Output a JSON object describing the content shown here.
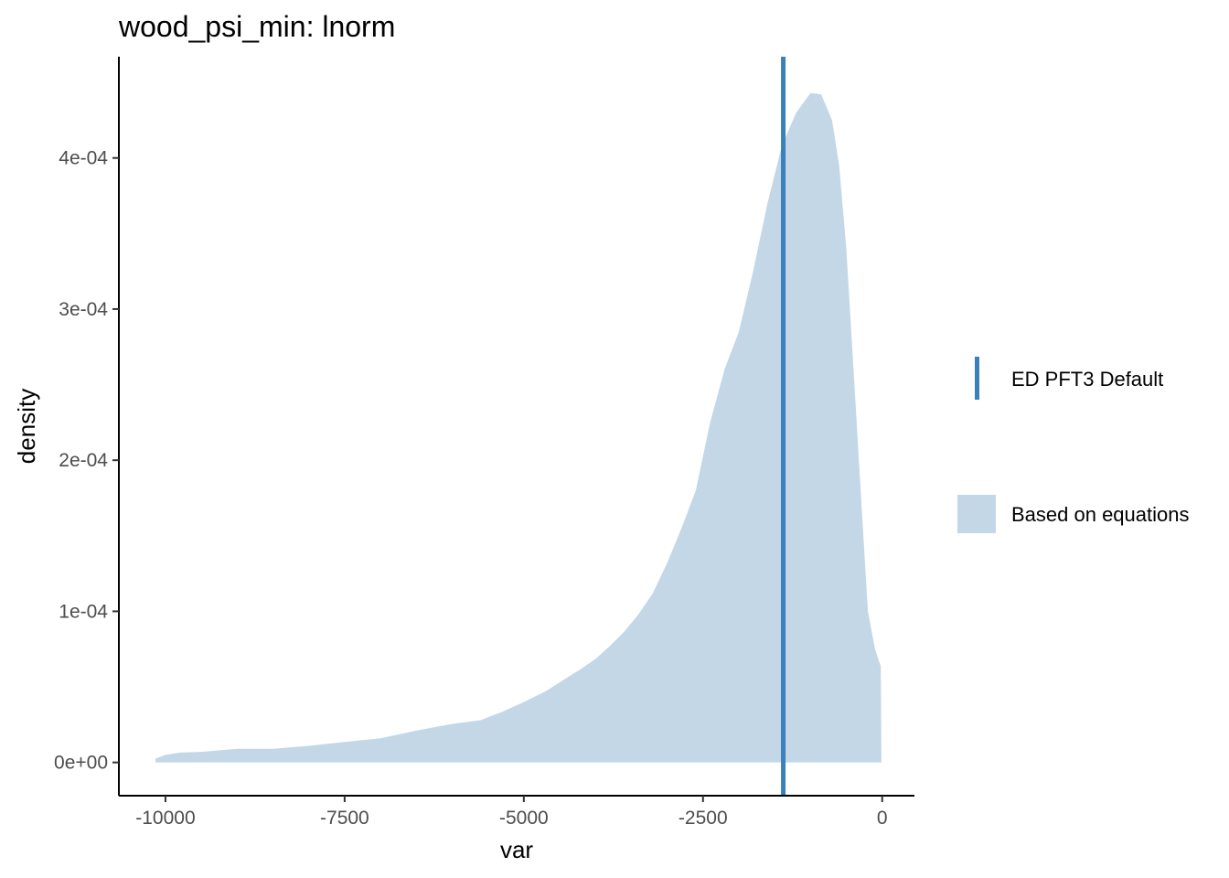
{
  "chart_data": {
    "type": "area",
    "title": "wood_psi_min: lnorm",
    "xlabel": "var",
    "ylabel": "density",
    "xlim": [
      -10650,
      450
    ],
    "ylim": [
      -2.2e-05,
      0.000467
    ],
    "x_ticks": [
      -10000,
      -7500,
      -5000,
      -2500,
      0
    ],
    "x_tick_labels": [
      "-10000",
      "-7500",
      "-5000",
      "-2500",
      "0"
    ],
    "y_ticks": [
      0,
      0.0001,
      0.0002,
      0.0003,
      0.0004
    ],
    "y_tick_labels": [
      "0e+00",
      "1e-04",
      "2e-04",
      "3e-04",
      "4e-04"
    ],
    "grid": false,
    "legend_position": "right",
    "colors": {
      "density_fill": "#c3d7e7",
      "default_line": "#3a80bb",
      "axis": "#000000"
    },
    "series": [
      {
        "name": "Based on equations",
        "kind": "density_area",
        "x": [
          -10140,
          -10000,
          -9800,
          -9500,
          -9000,
          -8500,
          -8000,
          -7500,
          -7000,
          -6500,
          -6000,
          -5600,
          -5300,
          -5000,
          -4700,
          -4400,
          -4200,
          -4000,
          -3800,
          -3600,
          -3400,
          -3200,
          -3000,
          -2800,
          -2600,
          -2400,
          -2200,
          -2000,
          -1800,
          -1600,
          -1400,
          -1200,
          -1000,
          -850,
          -700,
          -600,
          -500,
          -400,
          -300,
          -200,
          -100,
          -20,
          -10
        ],
        "y": [
          2.5e-06,
          5e-06,
          6.5e-06,
          7e-06,
          9e-06,
          9e-06,
          1.1e-05,
          1.35e-05,
          1.6e-05,
          2.1e-05,
          2.55e-05,
          2.8e-05,
          3.35e-05,
          4e-05,
          4.7e-05,
          5.6e-05,
          6.2e-05,
          6.85e-05,
          7.7e-05,
          8.65e-05,
          9.8e-05,
          0.000112,
          0.000132,
          0.000155,
          0.00018,
          0.000225,
          0.00026,
          0.000285,
          0.000325,
          0.00037,
          0.000408,
          0.00043,
          0.000443,
          0.000442,
          0.000425,
          0.000395,
          0.00034,
          0.00026,
          0.00018,
          0.0001,
          7.5e-05,
          6.35e-05,
          0
        ]
      },
      {
        "name": "ED PFT3 Default",
        "kind": "vline",
        "x": -1380
      }
    ]
  }
}
